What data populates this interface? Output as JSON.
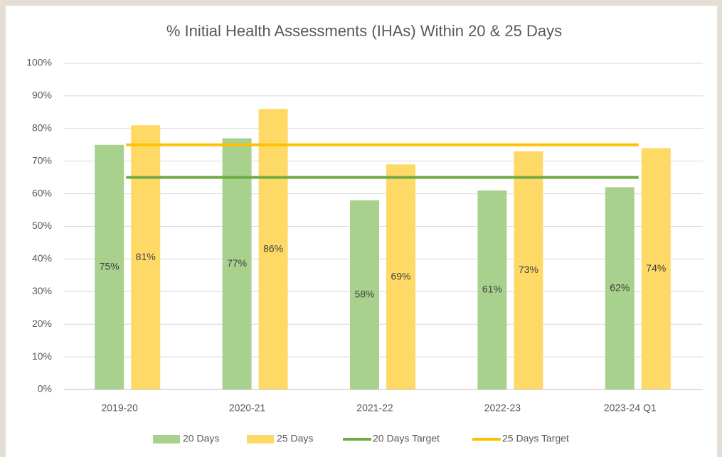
{
  "chart_data": {
    "type": "bar",
    "title": "% Initial Health Assessments (IHAs) Within 20 & 25 Days",
    "categories": [
      "2019-20",
      "2020-21",
      "2021-22",
      "2022-23",
      "2023-24 Q1"
    ],
    "series": [
      {
        "name": "20 Days",
        "type": "bar",
        "color": "#a9d18e",
        "values": [
          75,
          77,
          58,
          61,
          62
        ],
        "value_labels": [
          "75%",
          "77%",
          "58%",
          "61%",
          "62%"
        ]
      },
      {
        "name": "25 Days",
        "type": "bar",
        "color": "#ffd966",
        "values": [
          81,
          86,
          69,
          73,
          74
        ],
        "value_labels": [
          "81%",
          "86%",
          "69%",
          "73%",
          "74%"
        ]
      },
      {
        "name": "20 Days Target",
        "type": "line",
        "color": "#70ad47",
        "values": [
          65,
          65,
          65,
          65,
          65
        ]
      },
      {
        "name": "25 Days Target",
        "type": "line",
        "color": "#ffc000",
        "values": [
          75,
          75,
          75,
          75,
          75
        ]
      }
    ],
    "ylim": [
      0,
      100
    ],
    "yticks": [
      {
        "value": 0,
        "label": "0%"
      },
      {
        "value": 10,
        "label": "10%"
      },
      {
        "value": 20,
        "label": "20%"
      },
      {
        "value": 30,
        "label": "30%"
      },
      {
        "value": 40,
        "label": "40%"
      },
      {
        "value": 50,
        "label": "50%"
      },
      {
        "value": 60,
        "label": "60%"
      },
      {
        "value": 70,
        "label": "70%"
      },
      {
        "value": 80,
        "label": "80%"
      },
      {
        "value": 90,
        "label": "90%"
      },
      {
        "value": 100,
        "label": "100%"
      }
    ],
    "grid": true,
    "legend": "bottom"
  }
}
